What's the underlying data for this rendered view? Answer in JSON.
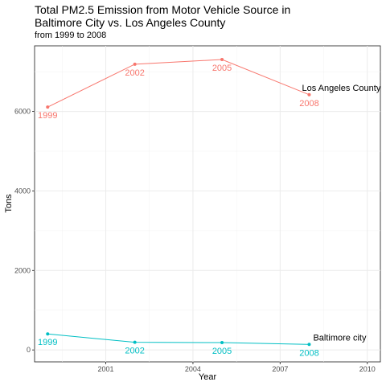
{
  "chart_data": {
    "type": "line",
    "title": "Total PM2.5 Emission from Motor Vehicle Source in\nBaltimore City vs. Los Angeles County",
    "subtitle": "from 1999 to 2008",
    "xlabel": "Year",
    "ylabel": "Tons",
    "xlim": [
      1998.55,
      2010.45
    ],
    "ylim": [
      -300,
      7650
    ],
    "xticks": [
      2001,
      2004,
      2007,
      2010
    ],
    "yticks": [
      0,
      2000,
      4000,
      6000
    ],
    "grid": true,
    "series": [
      {
        "name": "Los Angeles County",
        "color": "#f8766d",
        "x": [
          1999,
          2002,
          2005,
          2008
        ],
        "y": [
          6109,
          7188,
          7305,
          6421
        ],
        "point_labels": [
          "1999",
          "2002",
          "2005",
          "2008"
        ]
      },
      {
        "name": "Baltimore city",
        "color": "#00bfc4",
        "x": [
          1999,
          2002,
          2005,
          2008
        ],
        "y": [
          404,
          192,
          185,
          139
        ],
        "point_labels": [
          "1999",
          "2002",
          "2005",
          "2008"
        ]
      }
    ]
  }
}
